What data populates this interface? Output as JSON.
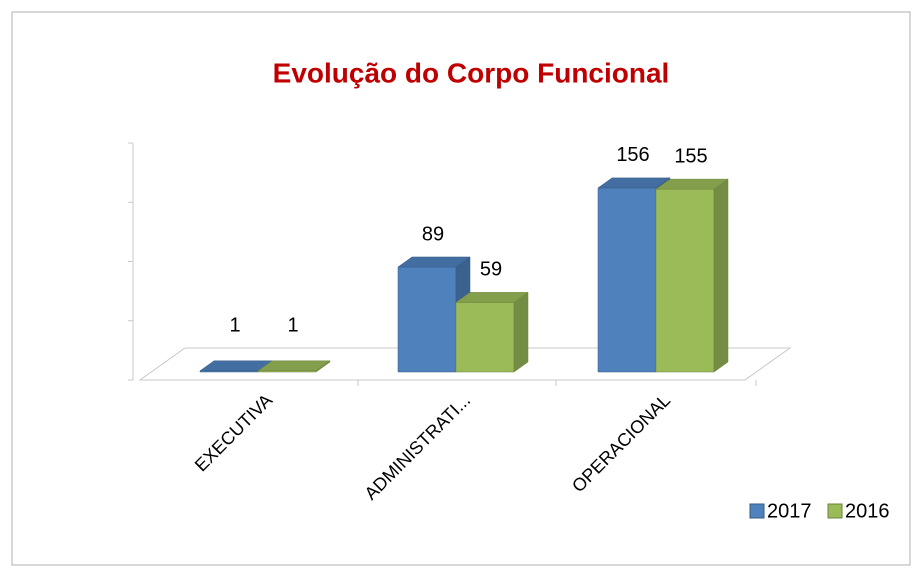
{
  "chart_data": {
    "type": "bar3d",
    "title": "Evolução do Corpo Funcional",
    "categories": [
      "EXECUTIVA",
      "ADMINISTRATI...",
      "OPERACIONAL"
    ],
    "series": [
      {
        "name": "2017",
        "color": "#4f81bd",
        "values": [
          1,
          89,
          156
        ]
      },
      {
        "name": "2016",
        "color": "#9bbb59",
        "values": [
          1,
          59,
          155
        ]
      }
    ],
    "ylim": [
      0,
      200
    ],
    "yticks": [
      0,
      50,
      100,
      150,
      200
    ],
    "legend": "bottom-right"
  }
}
